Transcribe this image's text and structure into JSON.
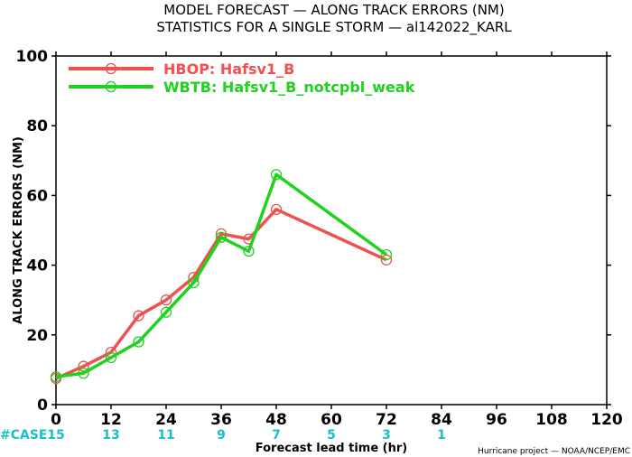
{
  "chart_data": {
    "type": "line",
    "title_line1": "MODEL FORECAST — ALONG TRACK ERRORS (NM)",
    "title_line2": "STATISTICS FOR A SINGLE STORM — al142022_KARL",
    "xlabel": "Forecast lead time (hr)",
    "ylabel": "ALONG TRACK ERRORS (NM)",
    "xlim": [
      0,
      120
    ],
    "ylim": [
      0,
      100
    ],
    "x_ticks": [
      0,
      12,
      24,
      36,
      48,
      60,
      72,
      84,
      96,
      108,
      120
    ],
    "y_ticks": [
      0,
      20,
      40,
      60,
      80,
      100
    ],
    "legend_position": "top-left",
    "grid": false,
    "series": [
      {
        "name": "HBOP: Hafsv1_B",
        "color": "#f05050",
        "x": [
          0,
          6,
          12,
          18,
          24,
          30,
          36,
          42,
          48,
          72
        ],
        "values": [
          7.5,
          11,
          15,
          25.5,
          30,
          36.5,
          49,
          47.5,
          56,
          41.5
        ]
      },
      {
        "name": "WBTB: Hafsv1_B_notcpbl_weak",
        "color": "#1ed21e",
        "x": [
          0,
          6,
          12,
          18,
          24,
          30,
          36,
          42,
          48,
          72
        ],
        "values": [
          8,
          9,
          13.5,
          18,
          26.5,
          35,
          48,
          44,
          66,
          43
        ]
      }
    ],
    "cases_label": "#CASE",
    "cases": [
      {
        "x": 0,
        "n": "15"
      },
      {
        "x": 12,
        "n": "13"
      },
      {
        "x": 24,
        "n": "11"
      },
      {
        "x": 36,
        "n": "9"
      },
      {
        "x": 48,
        "n": "7"
      },
      {
        "x": 60,
        "n": "5"
      },
      {
        "x": 72,
        "n": "3"
      },
      {
        "x": 84,
        "n": "1"
      }
    ],
    "credit": "Hurricane project — NOAA/NCEP/EMC",
    "case_color": "#19c0c8"
  }
}
